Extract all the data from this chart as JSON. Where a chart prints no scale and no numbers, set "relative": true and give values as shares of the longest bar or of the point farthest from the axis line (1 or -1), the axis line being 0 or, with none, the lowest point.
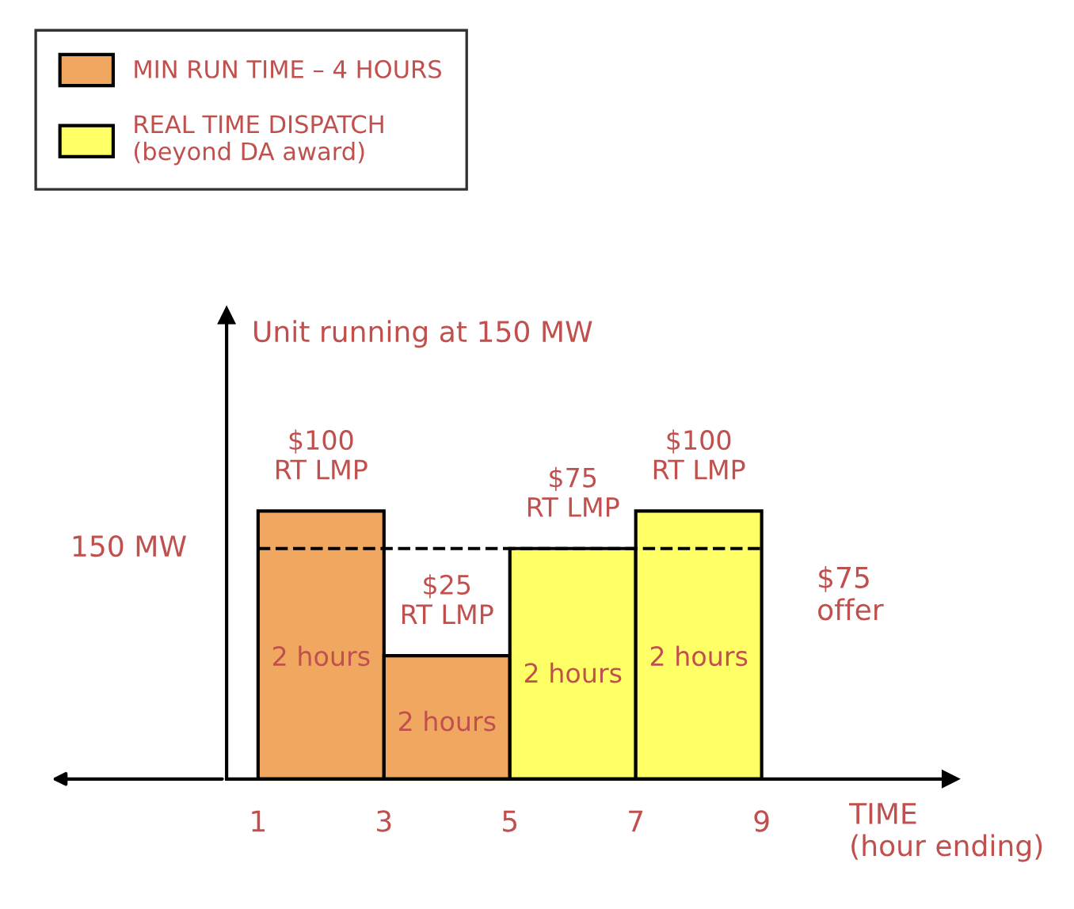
{
  "chart_data": {
    "type": "bar",
    "relative": true,
    "x": [
      2,
      4,
      6,
      8
    ],
    "xlim": [
      0.5,
      12
    ],
    "xticks": [
      1,
      3,
      5,
      7,
      9
    ],
    "xlabel": "TIME\n(hour ending)",
    "legend": "top left",
    "grid": false,
    "tick_labels": "x",
    "series": [
      {
        "name": "MIN RUN TIME – 4 HOURS",
        "color": "#f0a860",
        "values": [
          1,
          0.46,
          null,
          null
        ]
      },
      {
        "name": "REAL TIME DISPATCH\n(beyond DA award)",
        "color": "#ffff66",
        "values": [
          null,
          null,
          0.86,
          1
        ]
      }
    ],
    "ref_lines": [
      {
        "axis": "y",
        "value": 0.86,
        "label": "150 MW",
        "color": "#000000",
        "line_style": "dashed"
      }
    ],
    "annotations": [
      "Unit running at 150 MW",
      "$100\nRT LMP",
      "$25\nRT LMP",
      "$75\nRT LMP",
      "$100\nRT LMP",
      "2 hours",
      "2 hours",
      "2 hours",
      "2 hours",
      "$75\noffer"
    ]
  }
}
